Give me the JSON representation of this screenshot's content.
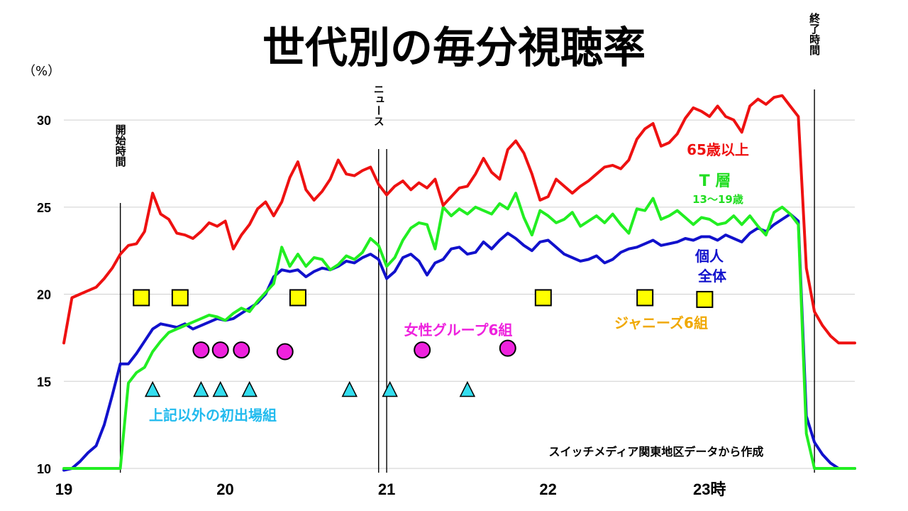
{
  "chart_data": {
    "type": "line",
    "title": "世代別の毎分視聴率",
    "ylabel": "（%）",
    "ylim": [
      10,
      32
    ],
    "xlim": [
      19.0,
      23.9
    ],
    "y_ticks": [
      "10",
      "15",
      "20",
      "25",
      "30"
    ],
    "x_ticks": [
      {
        "x": 19,
        "label": "19"
      },
      {
        "x": 20,
        "label": "20"
      },
      {
        "x": 21,
        "label": "21"
      },
      {
        "x": 22,
        "label": "22"
      },
      {
        "x": 23,
        "label": "23時"
      }
    ],
    "grid": true,
    "series": [
      {
        "name": "65歳以上",
        "color": "#ee1111",
        "x": [
          19.0,
          19.05,
          19.1,
          19.15,
          19.2,
          19.25,
          19.3,
          19.35,
          19.4,
          19.45,
          19.5,
          19.55,
          19.6,
          19.65,
          19.7,
          19.75,
          19.8,
          19.85,
          19.9,
          19.95,
          20.0,
          20.05,
          20.1,
          20.15,
          20.2,
          20.25,
          20.3,
          20.35,
          20.4,
          20.45,
          20.5,
          20.55,
          20.6,
          20.65,
          20.7,
          20.75,
          20.8,
          20.85,
          20.9,
          20.95,
          21.0,
          21.05,
          21.1,
          21.15,
          21.2,
          21.25,
          21.3,
          21.35,
          21.4,
          21.45,
          21.5,
          21.55,
          21.6,
          21.65,
          21.7,
          21.75,
          21.8,
          21.85,
          21.9,
          21.95,
          22.0,
          22.05,
          22.1,
          22.15,
          22.2,
          22.25,
          22.3,
          22.35,
          22.4,
          22.45,
          22.5,
          22.55,
          22.6,
          22.65,
          22.7,
          22.75,
          22.8,
          22.85,
          22.9,
          22.95,
          23.0,
          23.05,
          23.1,
          23.15,
          23.2,
          23.25,
          23.3,
          23.35,
          23.4,
          23.45,
          23.5,
          23.55,
          23.6,
          23.65,
          23.7,
          23.75,
          23.8,
          23.85,
          23.9
        ],
        "values": [
          17.2,
          19.8,
          20.0,
          20.2,
          20.4,
          20.9,
          21.5,
          22.3,
          22.8,
          22.9,
          23.6,
          25.8,
          24.6,
          24.3,
          23.5,
          23.4,
          23.2,
          23.6,
          24.1,
          23.9,
          24.2,
          22.6,
          23.4,
          24.0,
          24.9,
          25.3,
          24.5,
          25.3,
          26.7,
          27.6,
          26.0,
          25.4,
          25.9,
          26.6,
          27.7,
          26.9,
          26.8,
          27.1,
          27.3,
          26.3,
          25.7,
          26.2,
          26.5,
          26.0,
          26.4,
          26.1,
          26.6,
          25.1,
          25.6,
          26.1,
          26.2,
          26.9,
          27.8,
          27.0,
          26.6,
          28.3,
          28.8,
          28.1,
          26.9,
          25.4,
          25.6,
          26.6,
          26.2,
          25.8,
          26.2,
          26.5,
          26.9,
          27.3,
          27.4,
          27.2,
          27.7,
          28.9,
          29.5,
          29.8,
          28.5,
          28.7,
          29.2,
          30.1,
          30.7,
          30.5,
          30.2,
          30.8,
          30.2,
          30.0,
          29.3,
          30.8,
          31.2,
          30.9,
          31.3,
          31.4,
          30.8,
          30.2,
          21.5,
          19.0,
          18.2,
          17.6,
          17.2,
          17.2,
          17.2
        ]
      },
      {
        "name": "T層",
        "note": "13～19歳",
        "color": "#22ee22",
        "x": [
          19.0,
          19.05,
          19.1,
          19.15,
          19.2,
          19.25,
          19.3,
          19.35,
          19.4,
          19.45,
          19.5,
          19.55,
          19.6,
          19.65,
          19.7,
          19.75,
          19.8,
          19.85,
          19.9,
          19.95,
          20.0,
          20.05,
          20.1,
          20.15,
          20.2,
          20.25,
          20.3,
          20.35,
          20.4,
          20.45,
          20.5,
          20.55,
          20.6,
          20.65,
          20.7,
          20.75,
          20.8,
          20.85,
          20.9,
          20.95,
          21.0,
          21.05,
          21.1,
          21.15,
          21.2,
          21.25,
          21.3,
          21.35,
          21.4,
          21.45,
          21.5,
          21.55,
          21.6,
          21.65,
          21.7,
          21.75,
          21.8,
          21.85,
          21.9,
          21.95,
          22.0,
          22.05,
          22.1,
          22.15,
          22.2,
          22.25,
          22.3,
          22.35,
          22.4,
          22.45,
          22.5,
          22.55,
          22.6,
          22.65,
          22.7,
          22.75,
          22.8,
          22.85,
          22.9,
          22.95,
          23.0,
          23.05,
          23.1,
          23.15,
          23.2,
          23.25,
          23.3,
          23.35,
          23.4,
          23.45,
          23.5,
          23.55,
          23.6,
          23.65,
          23.7,
          23.75,
          23.8,
          23.85,
          23.9
        ],
        "values": [
          10.0,
          10.0,
          10.0,
          10.0,
          10.0,
          10.0,
          10.0,
          10.0,
          14.9,
          15.5,
          15.8,
          16.7,
          17.3,
          17.8,
          18.0,
          18.2,
          18.4,
          18.6,
          18.8,
          18.7,
          18.5,
          18.9,
          19.2,
          19.0,
          19.6,
          20.1,
          20.6,
          22.7,
          21.6,
          22.3,
          21.6,
          22.1,
          22.0,
          21.4,
          21.7,
          22.2,
          22.0,
          22.4,
          23.2,
          22.8,
          21.6,
          22.1,
          23.1,
          23.8,
          24.1,
          24.0,
          22.6,
          25.0,
          24.5,
          24.9,
          24.6,
          25.0,
          24.8,
          24.6,
          25.2,
          24.9,
          25.8,
          24.4,
          23.4,
          24.8,
          24.5,
          24.1,
          24.3,
          24.7,
          23.9,
          24.2,
          24.5,
          24.1,
          24.6,
          24.0,
          23.5,
          24.9,
          24.8,
          25.5,
          24.3,
          24.5,
          24.8,
          24.4,
          24.0,
          24.4,
          24.3,
          24.0,
          24.1,
          24.5,
          24.0,
          24.5,
          23.9,
          23.4,
          24.7,
          25.0,
          24.6,
          24.0,
          12.0,
          10.0,
          10.0,
          10.0,
          10.0,
          10.0,
          10.0
        ]
      },
      {
        "name": "個人全体",
        "color": "#1111cc",
        "x": [
          19.0,
          19.05,
          19.1,
          19.15,
          19.2,
          19.25,
          19.3,
          19.35,
          19.4,
          19.45,
          19.5,
          19.55,
          19.6,
          19.65,
          19.7,
          19.75,
          19.8,
          19.85,
          19.9,
          19.95,
          20.0,
          20.05,
          20.1,
          20.15,
          20.2,
          20.25,
          20.3,
          20.35,
          20.4,
          20.45,
          20.5,
          20.55,
          20.6,
          20.65,
          20.7,
          20.75,
          20.8,
          20.85,
          20.9,
          20.95,
          21.0,
          21.05,
          21.1,
          21.15,
          21.2,
          21.25,
          21.3,
          21.35,
          21.4,
          21.45,
          21.5,
          21.55,
          21.6,
          21.65,
          21.7,
          21.75,
          21.8,
          21.85,
          21.9,
          21.95,
          22.0,
          22.05,
          22.1,
          22.15,
          22.2,
          22.25,
          22.3,
          22.35,
          22.4,
          22.45,
          22.5,
          22.55,
          22.6,
          22.65,
          22.7,
          22.75,
          22.8,
          22.85,
          22.9,
          22.95,
          23.0,
          23.05,
          23.1,
          23.15,
          23.2,
          23.25,
          23.3,
          23.35,
          23.4,
          23.45,
          23.5,
          23.55,
          23.6,
          23.65,
          23.7,
          23.75,
          23.8,
          23.85,
          23.9
        ],
        "values": [
          9.9,
          10.0,
          10.4,
          10.9,
          11.3,
          12.5,
          14.2,
          16.0,
          16.0,
          16.6,
          17.3,
          18.0,
          18.3,
          18.2,
          18.1,
          18.3,
          18.0,
          18.2,
          18.4,
          18.6,
          18.5,
          18.6,
          18.9,
          19.2,
          19.5,
          20.0,
          21.0,
          21.4,
          21.3,
          21.4,
          21.0,
          21.3,
          21.5,
          21.4,
          21.6,
          21.9,
          21.8,
          22.1,
          22.3,
          22.0,
          20.9,
          21.3,
          22.1,
          22.3,
          21.9,
          21.1,
          21.8,
          22.0,
          22.6,
          22.7,
          22.3,
          22.4,
          23.0,
          22.6,
          23.1,
          23.5,
          23.2,
          22.8,
          22.5,
          23.0,
          23.1,
          22.7,
          22.3,
          22.1,
          21.9,
          22.0,
          22.2,
          21.8,
          22.0,
          22.4,
          22.6,
          22.7,
          22.9,
          23.1,
          22.8,
          22.9,
          23.0,
          23.2,
          23.1,
          23.3,
          23.3,
          23.1,
          23.4,
          23.2,
          23.0,
          23.5,
          23.8,
          23.6,
          24.0,
          24.3,
          24.6,
          24.2,
          13.0,
          11.5,
          10.8,
          10.3,
          10.0,
          10.0,
          10.0
        ]
      }
    ],
    "vertical_lines": [
      {
        "x": 19.35,
        "label": "開始時間"
      },
      {
        "x": 20.95,
        "label": "ニュース"
      },
      {
        "x": 21.0,
        "label": ""
      },
      {
        "x": 23.65,
        "label": "終了時間"
      }
    ],
    "marker_groups": [
      {
        "name": "ジャニーズ6組",
        "shape": "square",
        "color": "#ffff00",
        "points": [
          [
            19.48,
            19.8
          ],
          [
            19.72,
            19.8
          ],
          [
            20.45,
            19.8
          ],
          [
            21.97,
            19.8
          ],
          [
            22.6,
            19.8
          ],
          [
            22.97,
            19.7
          ]
        ]
      },
      {
        "name": "女性グループ6組",
        "shape": "circle",
        "color": "#ee22dd",
        "points": [
          [
            19.85,
            16.8
          ],
          [
            19.97,
            16.8
          ],
          [
            20.1,
            16.8
          ],
          [
            20.37,
            16.7
          ],
          [
            21.22,
            16.8
          ],
          [
            21.75,
            16.9
          ]
        ]
      },
      {
        "name": "上記以外の初出場組",
        "shape": "triangle",
        "color": "#33ddee",
        "points": [
          [
            19.55,
            14.5
          ],
          [
            19.85,
            14.5
          ],
          [
            19.97,
            14.5
          ],
          [
            20.15,
            14.5
          ],
          [
            20.77,
            14.5
          ],
          [
            21.02,
            14.5
          ],
          [
            21.5,
            14.5
          ]
        ]
      }
    ],
    "annotations": {
      "series_65": "65歳以上",
      "series_t": "T 層",
      "series_t_sub": "13～19歳",
      "series_all_1": "個人",
      "series_all_2": "全体",
      "group_j": "ジャニーズ6組",
      "group_f": "女性グループ6組",
      "group_o": "上記以外の初出場組",
      "source": "スイッチメディア関東地区データから作成"
    }
  }
}
